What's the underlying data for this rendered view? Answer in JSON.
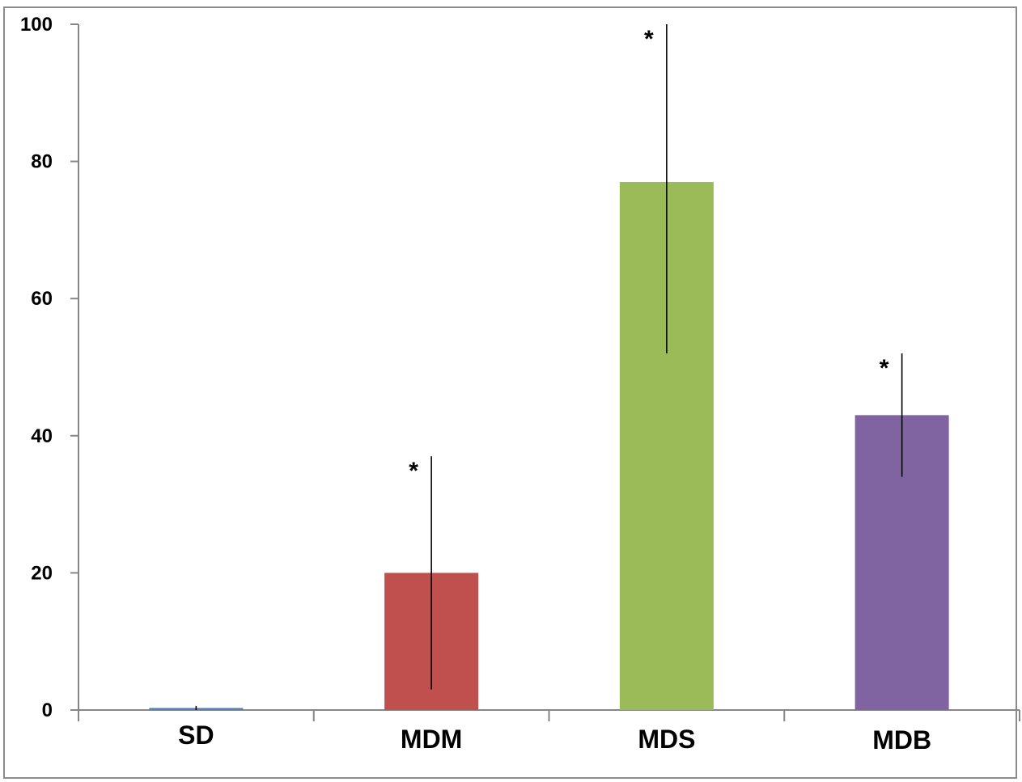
{
  "chart_data": {
    "type": "bar",
    "title": "",
    "xlabel": "",
    "ylabel": "",
    "categories": [
      "SD",
      "MDM",
      "MDS",
      "MDB"
    ],
    "values": [
      0.3,
      20,
      77,
      43
    ],
    "error_upper": [
      0.6,
      37,
      100,
      52
    ],
    "error_lower": [
      0,
      3,
      52,
      34
    ],
    "significance": [
      "",
      "*",
      "*",
      "*"
    ],
    "colors": [
      "#4f81bd",
      "#c0504d",
      "#9bbb59",
      "#8064a2"
    ],
    "ylim": [
      0,
      100
    ],
    "yticks": [
      0,
      20,
      40,
      60,
      80,
      100
    ],
    "ytick_labels": [
      "0",
      "20",
      "40",
      "60",
      "80",
      "100"
    ],
    "grid": false,
    "legend": "none"
  }
}
